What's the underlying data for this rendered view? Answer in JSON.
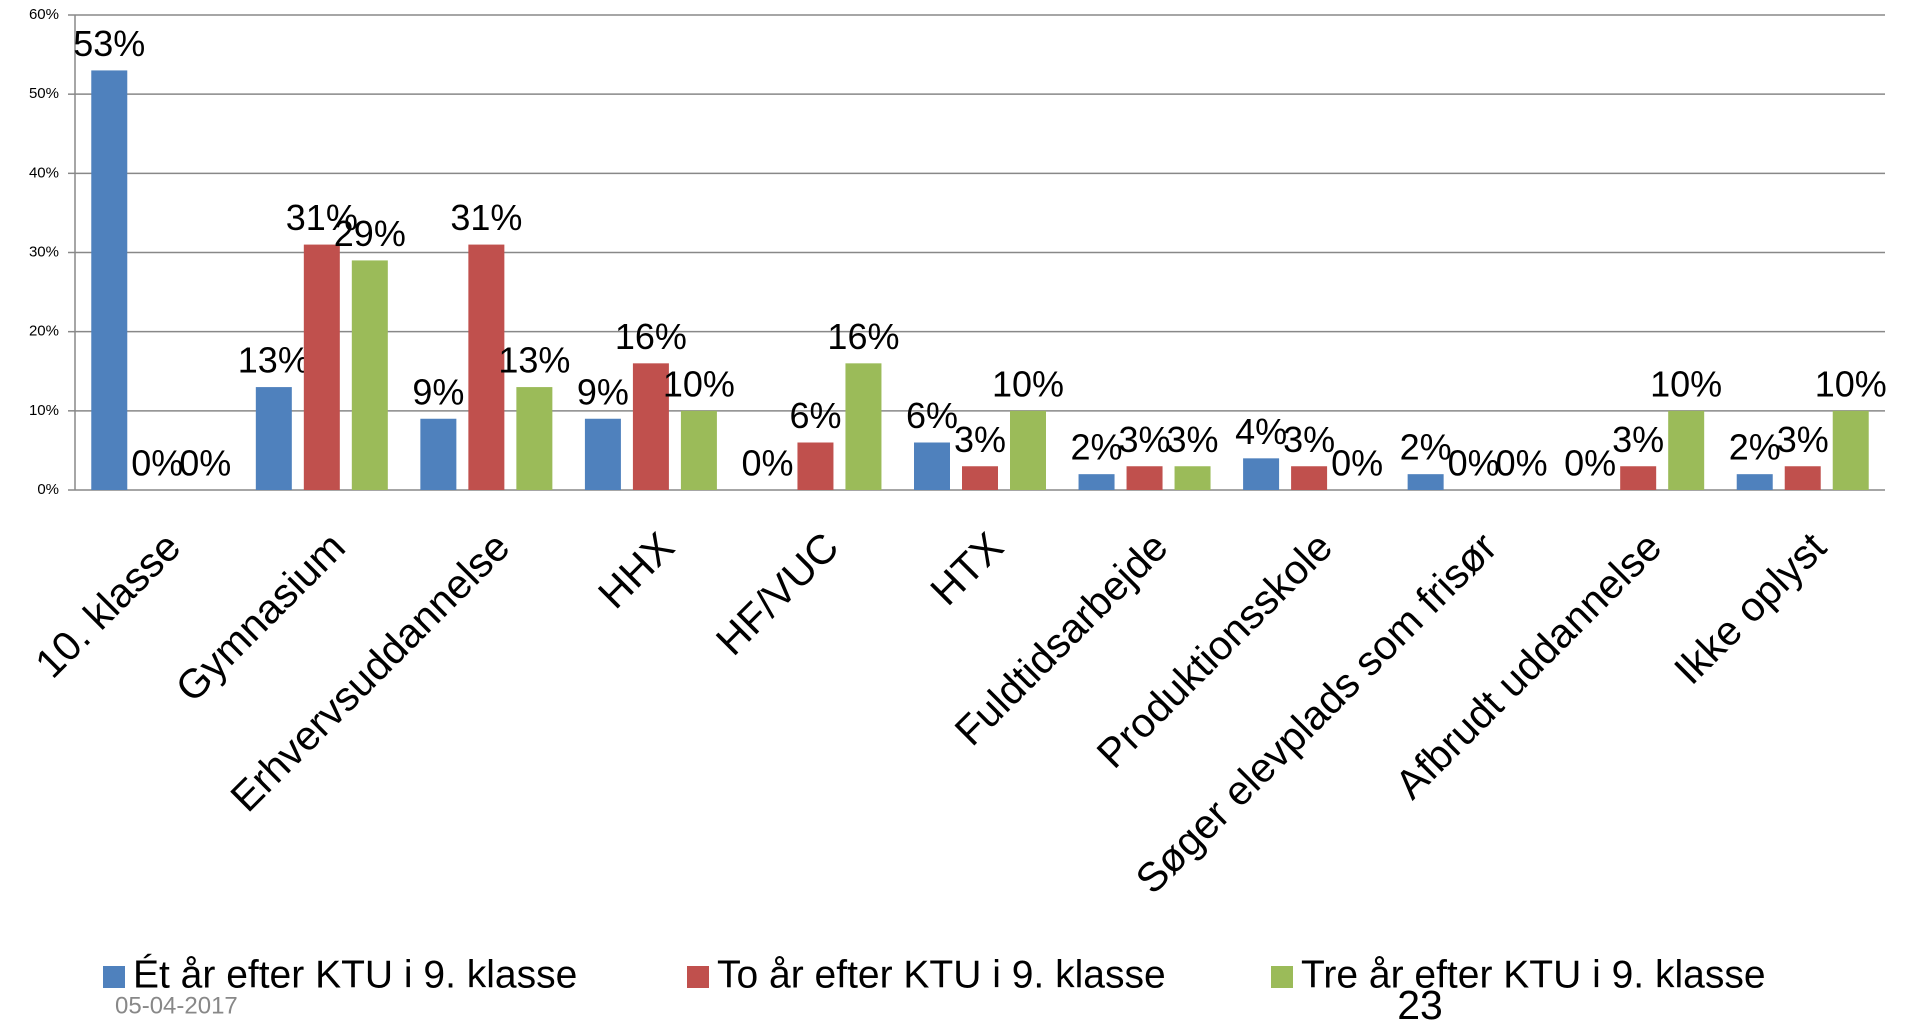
{
  "chart_data": {
    "type": "bar",
    "categories": [
      "10. klasse",
      "Gymnasium",
      "Erhvervsuddannelse",
      "HHX",
      "HF/VUC",
      "HTX",
      "Fuldtidsarbejde",
      "Produktionsskole",
      "Søger elevplads som frisør",
      "Afbrudt uddannelse",
      "Ikke oplyst"
    ],
    "series": [
      {
        "name": "Ét år efter KTU i 9. klasse",
        "color": "#4f81bd",
        "values": [
          53,
          13,
          9,
          9,
          0,
          6,
          2,
          4,
          2,
          0,
          2
        ],
        "value_labels": [
          "53%",
          "13%",
          "9%",
          "9%",
          "0%",
          "6%",
          "2%",
          "4%",
          "2%",
          "0%",
          "2%"
        ]
      },
      {
        "name": "To år efter KTU i 9. klasse",
        "color": "#c0504d",
        "values": [
          0,
          31,
          31,
          16,
          6,
          3,
          3,
          3,
          0,
          3,
          3
        ],
        "value_labels": [
          "0%",
          "31%",
          "31%",
          "16%",
          "6%",
          "3%",
          "3%",
          "3%",
          "0%",
          "3%",
          "3%"
        ]
      },
      {
        "name": "Tre år efter KTU i 9. klasse",
        "color": "#9bbb59",
        "values": [
          0,
          29,
          13,
          10,
          16,
          10,
          3,
          0,
          0,
          10,
          10
        ],
        "value_labels": [
          "0%",
          "29%",
          "13%",
          "10%",
          "16%",
          "10%",
          "3%",
          "0%",
          "0%",
          "10%",
          "10%"
        ]
      }
    ],
    "ylim": [
      0,
      60
    ],
    "yticks": [
      {
        "value": 0,
        "label": "0%"
      },
      {
        "value": 10,
        "label": "10%"
      },
      {
        "value": 20,
        "label": "20%"
      },
      {
        "value": 30,
        "label": "30%"
      },
      {
        "value": 40,
        "label": "40%"
      },
      {
        "value": 50,
        "label": "50%"
      },
      {
        "value": 60,
        "label": "60%"
      }
    ],
    "grid": true,
    "legend": "bottom"
  },
  "footer": {
    "date": "05-04-2017",
    "page": "23"
  }
}
